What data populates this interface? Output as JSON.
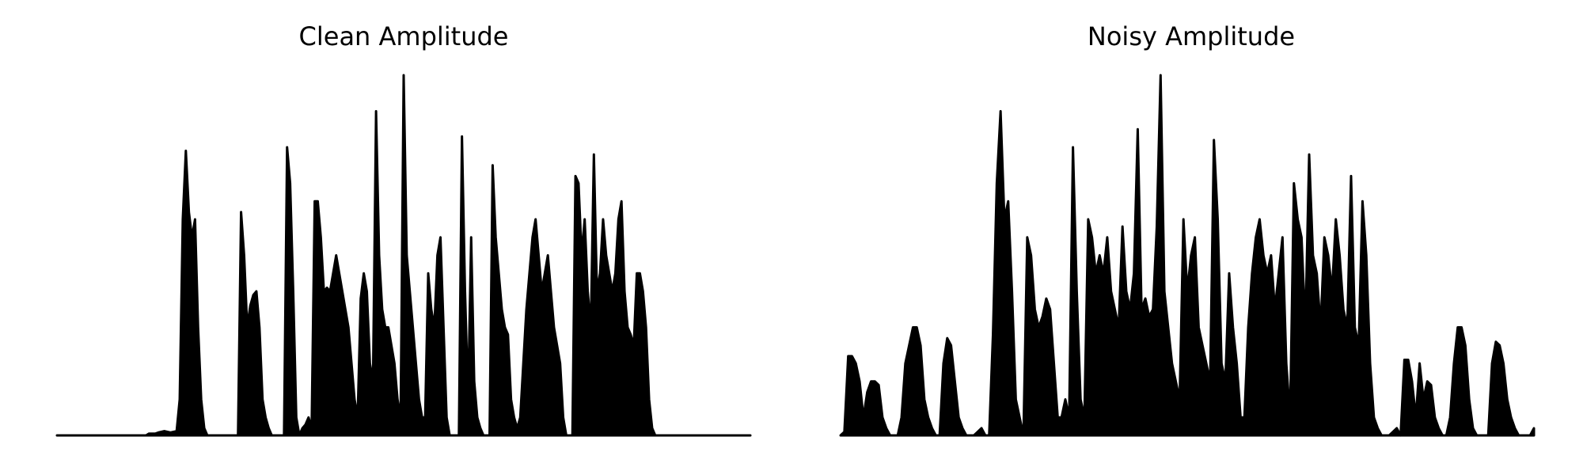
{
  "colors": {
    "background": "#ffffff",
    "waveform": "#000000"
  },
  "chart_data": [
    {
      "type": "area",
      "title": "Clean Amplitude",
      "axes_visible": false,
      "grid": false,
      "ylim": [
        0,
        1
      ],
      "series": [
        {
          "values": [
            0.0,
            0.0,
            0.0,
            0.0,
            0.0,
            0.0,
            0.0,
            0.0,
            0.0,
            0.0,
            0.0,
            0.0,
            0.0,
            0.0,
            0.0,
            0.0,
            0.0,
            0.0,
            0.0,
            0.0,
            0.0,
            0.0,
            0.0,
            0.0,
            0.0,
            0.0,
            0.0,
            0.0,
            0.0,
            0.0,
            0.005,
            0.005,
            0.005,
            0.008,
            0.01,
            0.012,
            0.01,
            0.008,
            0.01,
            0.012,
            0.1,
            0.6,
            0.79,
            0.62,
            0.55,
            0.6,
            0.3,
            0.1,
            0.02,
            0.0,
            0.0,
            0.0,
            0.0,
            0.0,
            0.0,
            0.0,
            0.0,
            0.0,
            0.0,
            0.0,
            0.62,
            0.5,
            0.3,
            0.36,
            0.39,
            0.4,
            0.3,
            0.1,
            0.05,
            0.02,
            0.0,
            0.0,
            0.0,
            0.0,
            0.0,
            0.8,
            0.7,
            0.4,
            0.05,
            0.0,
            0.02,
            0.03,
            0.05,
            0.02,
            0.65,
            0.65,
            0.55,
            0.4,
            0.41,
            0.4,
            0.45,
            0.5,
            0.45,
            0.4,
            0.35,
            0.3,
            0.2,
            0.1,
            0.05,
            0.38,
            0.45,
            0.4,
            0.2,
            0.15,
            0.9,
            0.5,
            0.35,
            0.3,
            0.3,
            0.25,
            0.2,
            0.1,
            0.05,
            1.0,
            0.5,
            0.4,
            0.3,
            0.2,
            0.1,
            0.05,
            0.05,
            0.45,
            0.35,
            0.3,
            0.5,
            0.55,
            0.3,
            0.05,
            0.0,
            0.0,
            0.0,
            0.0,
            0.83,
            0.4,
            0.1,
            0.55,
            0.15,
            0.05,
            0.02,
            0.0,
            0.0,
            0.0,
            0.75,
            0.55,
            0.45,
            0.35,
            0.3,
            0.28,
            0.1,
            0.05,
            0.02,
            0.05,
            0.2,
            0.35,
            0.45,
            0.55,
            0.6,
            0.5,
            0.4,
            0.45,
            0.5,
            0.4,
            0.3,
            0.25,
            0.2,
            0.05,
            0.0,
            0.0,
            0.0,
            0.72,
            0.7,
            0.5,
            0.6,
            0.4,
            0.3,
            0.78,
            0.4,
            0.45,
            0.6,
            0.5,
            0.45,
            0.4,
            0.45,
            0.6,
            0.65,
            0.4,
            0.3,
            0.28,
            0.25,
            0.45,
            0.45,
            0.4,
            0.3,
            0.1,
            0.02,
            0.0,
            0.0,
            0.0,
            0.0,
            0.0,
            0.0,
            0.0,
            0.0,
            0.0,
            0.0,
            0.0,
            0.0,
            0.0,
            0.0,
            0.0,
            0.0,
            0.0,
            0.0,
            0.0,
            0.0,
            0.0,
            0.0,
            0.0,
            0.0,
            0.0,
            0.0,
            0.0,
            0.0,
            0.0,
            0.0,
            0.0,
            0.0
          ]
        }
      ]
    },
    {
      "type": "area",
      "title": "Noisy Amplitude",
      "axes_visible": false,
      "grid": false,
      "ylim": [
        0,
        1
      ],
      "series": [
        {
          "values": [
            0.0,
            0.01,
            0.22,
            0.22,
            0.2,
            0.15,
            0.05,
            0.12,
            0.15,
            0.15,
            0.14,
            0.05,
            0.02,
            0.0,
            0.0,
            0.0,
            0.05,
            0.2,
            0.25,
            0.3,
            0.3,
            0.25,
            0.1,
            0.05,
            0.02,
            0.0,
            0.0,
            0.2,
            0.27,
            0.25,
            0.15,
            0.05,
            0.02,
            0.0,
            0.0,
            0.0,
            0.01,
            0.02,
            0.0,
            0.0,
            0.28,
            0.7,
            0.9,
            0.6,
            0.65,
            0.4,
            0.1,
            0.05,
            0.0,
            0.55,
            0.5,
            0.35,
            0.3,
            0.33,
            0.38,
            0.35,
            0.2,
            0.05,
            0.05,
            0.1,
            0.05,
            0.8,
            0.4,
            0.1,
            0.05,
            0.6,
            0.55,
            0.45,
            0.5,
            0.45,
            0.55,
            0.4,
            0.35,
            0.3,
            0.58,
            0.4,
            0.35,
            0.45,
            0.85,
            0.35,
            0.38,
            0.33,
            0.35,
            0.58,
            1.0,
            0.4,
            0.3,
            0.2,
            0.15,
            0.1,
            0.6,
            0.4,
            0.5,
            0.55,
            0.3,
            0.25,
            0.2,
            0.15,
            0.82,
            0.6,
            0.2,
            0.15,
            0.45,
            0.3,
            0.2,
            0.05,
            0.05,
            0.3,
            0.45,
            0.55,
            0.6,
            0.5,
            0.45,
            0.5,
            0.35,
            0.45,
            0.55,
            0.2,
            0.05,
            0.7,
            0.6,
            0.55,
            0.3,
            0.78,
            0.5,
            0.45,
            0.3,
            0.55,
            0.5,
            0.4,
            0.6,
            0.5,
            0.35,
            0.3,
            0.72,
            0.3,
            0.25,
            0.65,
            0.5,
            0.2,
            0.05,
            0.02,
            0.0,
            0.0,
            0.0,
            0.01,
            0.02,
            0.0,
            0.21,
            0.21,
            0.15,
            0.05,
            0.2,
            0.1,
            0.15,
            0.14,
            0.05,
            0.02,
            0.0,
            0.0,
            0.05,
            0.2,
            0.3,
            0.3,
            0.25,
            0.1,
            0.02,
            0.0,
            0.0,
            0.0,
            0.0,
            0.2,
            0.26,
            0.25,
            0.2,
            0.1,
            0.05,
            0.02,
            0.0,
            0.0,
            0.0,
            0.0,
            0.02
          ]
        }
      ]
    }
  ]
}
